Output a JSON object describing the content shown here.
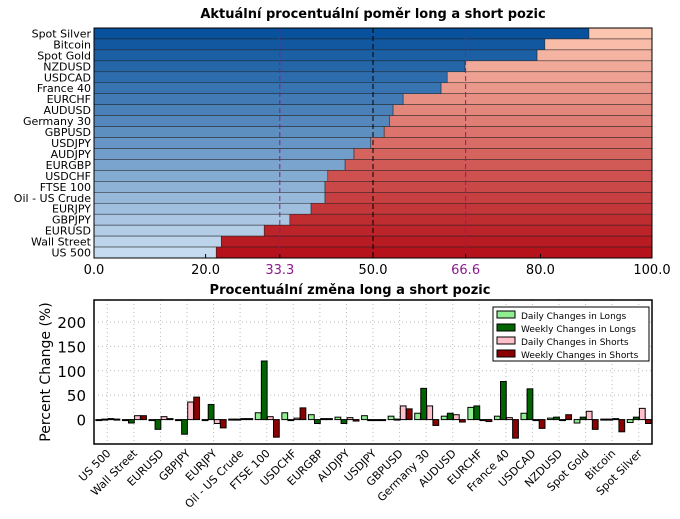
{
  "chart_data": [
    {
      "type": "bar",
      "orientation": "horizontal-stacked",
      "title": "Aktuální procentuální poměr long a short pozic",
      "categories": [
        "Spot Silver",
        "Bitcoin",
        "Spot Gold",
        "NZDUSD",
        "USDCAD",
        "France 40",
        "EURCHF",
        "AUDUSD",
        "Germany 30",
        "GBPUSD",
        "USDJPY",
        "AUDJPY",
        "EURGBP",
        "USDCHF",
        "FTSE 100",
        "Oil - US Crude",
        "EURJPY",
        "GBPJPY",
        "EURUSD",
        "Wall Street",
        "US 500"
      ],
      "long": [
        88.7,
        80.8,
        79.4,
        66.5,
        63.3,
        62.2,
        55.4,
        53.6,
        53.0,
        52.0,
        49.6,
        46.6,
        45.0,
        41.9,
        41.4,
        41.4,
        38.9,
        35.1,
        30.5,
        22.8,
        21.9
      ],
      "xlim": [
        0,
        100
      ],
      "xticks": [
        "0.0",
        "20.0",
        "33.3",
        "50.0",
        "66.6",
        "80.0",
        "100.0"
      ],
      "xtick_values": [
        0,
        20,
        33.3,
        50,
        66.6,
        80,
        100
      ],
      "reference_lines": [
        33.3,
        50,
        66.6
      ],
      "colors": {
        "ref": "#8b1a8b",
        "long_dark": "#08519c",
        "long_light": "#c6dbef",
        "short_light": "#fcc5b0",
        "short_dark": "#b5121b"
      }
    },
    {
      "type": "bar",
      "title": "Procentuální změna long a short pozic",
      "ylabel": "Percent Change (%)",
      "ylim": [
        -50,
        245
      ],
      "yticks": [
        "0",
        "50",
        "100",
        "150",
        "200"
      ],
      "ytick_values": [
        0,
        50,
        100,
        150,
        200
      ],
      "grid": true,
      "legend": "top-right",
      "categories": [
        "US 500",
        "Wall Street",
        "EURUSD",
        "GBPJPY",
        "EURJPY",
        "Oil - US Crude",
        "FTSE 100",
        "USDCHF",
        "EURGBP",
        "AUDJPY",
        "USDJPY",
        "GBPUSD",
        "Germany 30",
        "AUDUSD",
        "EURCHF",
        "France 40",
        "USDCAD",
        "NZDUSD",
        "Spot Gold",
        "Bitcoin",
        "Spot Silver"
      ],
      "series": [
        {
          "name": "Daily Changes in Longs",
          "color": "#90ee90",
          "values": [
            -1,
            0,
            -2,
            0,
            -2,
            1,
            14,
            14,
            10,
            5,
            8,
            7,
            13,
            7,
            25,
            7,
            13,
            3,
            -7,
            1,
            -6
          ]
        },
        {
          "name": "Weekly Changes in Longs",
          "color": "#006400",
          "values": [
            1,
            -7,
            -20,
            -30,
            31,
            1,
            120,
            -2,
            -8,
            -8,
            -1,
            1,
            64,
            13,
            28,
            78,
            63,
            5,
            5,
            1,
            5
          ]
        },
        {
          "name": "Daily Changes in Shorts",
          "color": "#ffc0cb",
          "values": [
            2,
            8,
            6,
            36,
            -8,
            2,
            6,
            3,
            2,
            4,
            -1,
            28,
            28,
            10,
            -1,
            4,
            -2,
            0,
            17,
            2,
            23
          ]
        },
        {
          "name": "Weekly Changes in Shorts",
          "color": "#8b0000",
          "values": [
            1,
            8,
            2,
            46,
            -17,
            2,
            -36,
            24,
            2,
            -3,
            -1,
            22,
            -12,
            -5,
            -4,
            -38,
            -18,
            10,
            -20,
            -25,
            -8
          ]
        }
      ]
    }
  ]
}
